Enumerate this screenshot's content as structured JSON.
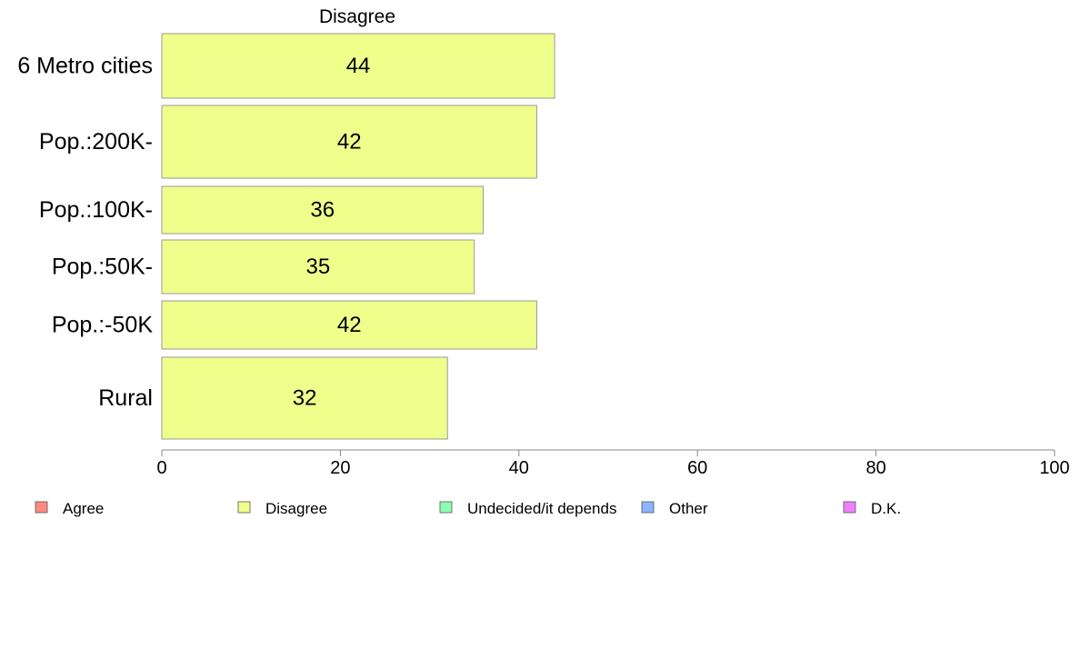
{
  "chart_data": {
    "type": "bar",
    "orientation": "horizontal",
    "title": "Disagree",
    "categories": [
      "6 Metro cities",
      "Pop.:200K-",
      "Pop.:100K-",
      "Pop.:50K-",
      "Pop.:-50K",
      "Rural"
    ],
    "values": [
      44,
      42,
      36,
      35,
      42,
      32
    ],
    "data_labels": [
      "44",
      "42",
      "36",
      "35",
      "42",
      "32"
    ],
    "bar_color": "#eeff8c",
    "bar_stroke": "#999999",
    "xlim": [
      0,
      100
    ],
    "x_ticks": [
      0,
      20,
      40,
      60,
      80,
      100
    ],
    "grid": false,
    "legend_position": "bottom",
    "legend": [
      {
        "label": "Agree",
        "color": "#ff8a80"
      },
      {
        "label": "Disagree",
        "color": "#eeff8c"
      },
      {
        "label": "Undecided/it depends",
        "color": "#8affb0"
      },
      {
        "label": "Other",
        "color": "#8ab4ff"
      },
      {
        "label": "D.K.",
        "color": "#ee80ff"
      }
    ]
  }
}
